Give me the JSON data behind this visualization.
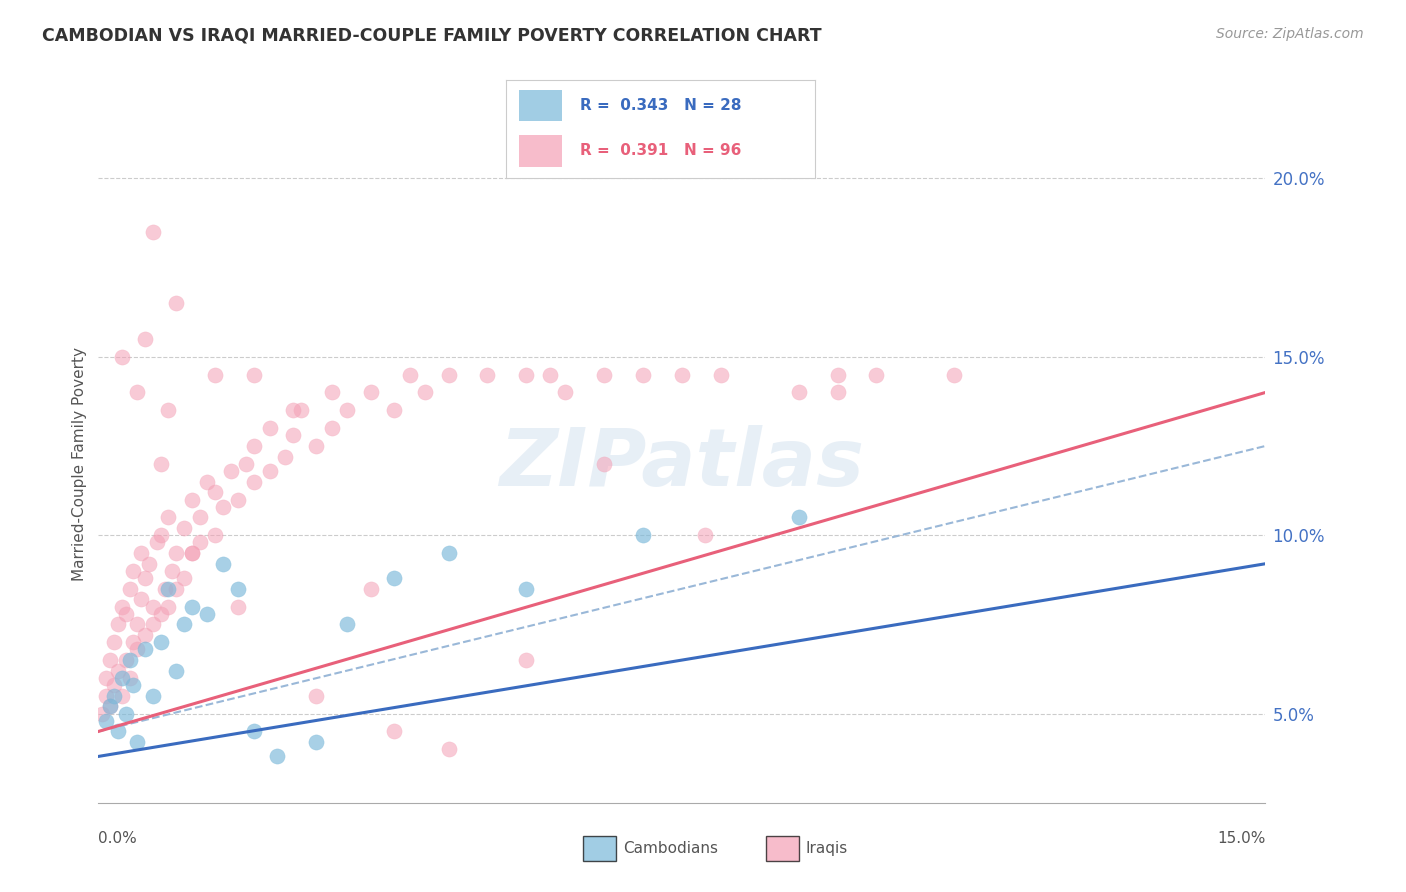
{
  "title": "CAMBODIAN VS IRAQI MARRIED-COUPLE FAMILY POVERTY CORRELATION CHART",
  "source": "Source: ZipAtlas.com",
  "ylabel": "Married-Couple Family Poverty",
  "yticks": [
    5.0,
    10.0,
    15.0,
    20.0
  ],
  "xlim": [
    0.0,
    15.0
  ],
  "ylim": [
    2.5,
    21.5
  ],
  "cambodian_color": "#7ab8d9",
  "iraqi_color": "#f4a0b5",
  "cambodian_line_color": "#3a6bbf",
  "iraqi_line_color": "#e8607a",
  "dashed_line_color": "#9ab8d8",
  "cambodian_R": 0.343,
  "cambodian_N": 28,
  "iraqi_R": 0.391,
  "iraqi_N": 96,
  "watermark": "ZIPatlas",
  "watermark_color": "#c5d8ea",
  "legend_cambodians": "Cambodians",
  "legend_iraqis": "Iraqis",
  "cambodian_x": [
    0.1,
    0.15,
    0.2,
    0.25,
    0.3,
    0.35,
    0.4,
    0.45,
    0.5,
    0.6,
    0.7,
    0.8,
    0.9,
    1.0,
    1.1,
    1.2,
    1.4,
    1.6,
    1.8,
    2.0,
    2.3,
    2.8,
    3.2,
    3.8,
    4.5,
    5.5,
    7.0,
    9.0
  ],
  "cambodian_y": [
    4.8,
    5.2,
    5.5,
    4.5,
    6.0,
    5.0,
    6.5,
    5.8,
    4.2,
    6.8,
    5.5,
    7.0,
    8.5,
    6.2,
    7.5,
    8.0,
    7.8,
    9.2,
    8.5,
    4.5,
    3.8,
    4.2,
    7.5,
    8.8,
    9.5,
    8.5,
    10.0,
    10.5
  ],
  "iraqi_x": [
    0.05,
    0.1,
    0.1,
    0.15,
    0.15,
    0.2,
    0.2,
    0.25,
    0.25,
    0.3,
    0.3,
    0.35,
    0.35,
    0.4,
    0.4,
    0.45,
    0.45,
    0.5,
    0.5,
    0.55,
    0.55,
    0.6,
    0.6,
    0.65,
    0.7,
    0.7,
    0.75,
    0.8,
    0.8,
    0.85,
    0.9,
    0.9,
    0.95,
    1.0,
    1.0,
    1.1,
    1.1,
    1.2,
    1.2,
    1.3,
    1.3,
    1.4,
    1.5,
    1.5,
    1.6,
    1.7,
    1.8,
    1.9,
    2.0,
    2.0,
    2.2,
    2.2,
    2.4,
    2.5,
    2.6,
    2.8,
    3.0,
    3.0,
    3.2,
    3.5,
    3.8,
    4.0,
    4.2,
    4.5,
    5.0,
    5.5,
    5.8,
    6.0,
    6.5,
    7.0,
    7.5,
    8.0,
    9.0,
    9.5,
    10.0,
    11.0,
    0.5,
    0.7,
    1.0,
    1.5,
    2.0,
    2.5,
    1.2,
    0.8,
    3.5,
    4.5,
    5.5,
    0.3,
    0.6,
    0.9,
    1.8,
    2.8,
    3.8,
    6.5,
    7.8,
    9.5
  ],
  "iraqi_y": [
    5.0,
    5.5,
    6.0,
    5.2,
    6.5,
    5.8,
    7.0,
    6.2,
    7.5,
    5.5,
    8.0,
    6.5,
    7.8,
    6.0,
    8.5,
    7.0,
    9.0,
    6.8,
    7.5,
    8.2,
    9.5,
    7.2,
    8.8,
    9.2,
    7.5,
    8.0,
    9.8,
    7.8,
    10.0,
    8.5,
    8.0,
    10.5,
    9.0,
    8.5,
    9.5,
    8.8,
    10.2,
    9.5,
    11.0,
    9.8,
    10.5,
    11.5,
    10.0,
    11.2,
    10.8,
    11.8,
    11.0,
    12.0,
    11.5,
    12.5,
    11.8,
    13.0,
    12.2,
    12.8,
    13.5,
    12.5,
    13.0,
    14.0,
    13.5,
    14.0,
    13.5,
    14.5,
    14.0,
    14.5,
    14.5,
    14.5,
    14.5,
    14.0,
    14.5,
    14.5,
    14.5,
    14.5,
    14.0,
    14.5,
    14.5,
    14.5,
    14.0,
    18.5,
    16.5,
    14.5,
    14.5,
    13.5,
    9.5,
    12.0,
    8.5,
    4.0,
    6.5,
    15.0,
    15.5,
    13.5,
    8.0,
    5.5,
    4.5,
    12.0,
    10.0,
    14.0
  ]
}
